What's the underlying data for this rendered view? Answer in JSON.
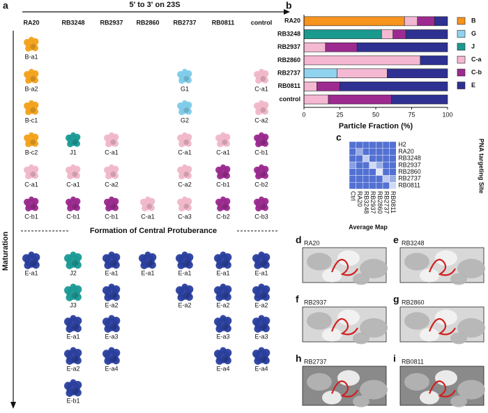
{
  "panel_a": {
    "letter": "a",
    "arrow_label": "5' to 3' on 23S",
    "columns": [
      "RA20",
      "RB3248",
      "RB2937",
      "RB2860",
      "RB2737",
      "RB0811",
      "control"
    ],
    "upper_rows": [
      [
        "B-a1",
        null,
        null,
        null,
        null,
        null,
        null
      ],
      [
        "B-a2",
        null,
        null,
        null,
        "G1",
        null,
        "C-a1"
      ],
      [
        "B-c1",
        null,
        null,
        null,
        "G2",
        null,
        "C-a2"
      ],
      [
        "B-c2",
        "J1",
        "C-a1",
        null,
        "C-a1",
        "C-a1",
        "C-b1"
      ],
      [
        "C-a1",
        "C-a1",
        "C-a2",
        null,
        "C-a2",
        "C-b1",
        "C-b2"
      ],
      [
        "C-b1",
        "C-b1",
        "C-b1",
        "C-a1",
        "C-a3",
        "C-b2",
        "C-b3"
      ]
    ],
    "divider": "Formation of Central Protuberance",
    "lower_rows": [
      [
        "E-a1",
        "J2",
        "E-a1",
        "E-a1",
        "E-a1",
        "E-a1",
        "E-a1"
      ],
      [
        null,
        "J3",
        "E-a2",
        null,
        "E-a2",
        "E-a2",
        "E-a2"
      ],
      [
        null,
        "E-a1",
        "E-a3",
        null,
        null,
        "E-a3",
        "E-a3"
      ],
      [
        null,
        "E-a2",
        "E-a4",
        null,
        null,
        "E-a4",
        "E-a4"
      ],
      [
        null,
        "E-b1",
        null,
        null,
        null,
        null,
        null
      ]
    ],
    "y_axis_label": "Maturation"
  },
  "chart_data": [
    {
      "type": "stacked-barh",
      "panel_label": "b",
      "categories": [
        "RA20",
        "RB3248",
        "RB2937",
        "RB2860",
        "RB2737",
        "RB0811",
        "control"
      ],
      "series": [
        {
          "name": "B",
          "color": "#f7941d",
          "values": [
            70,
            0,
            0,
            0,
            0,
            0,
            0
          ]
        },
        {
          "name": "G",
          "color": "#8fd3ee",
          "values": [
            0,
            0,
            0,
            0,
            23,
            0,
            0
          ]
        },
        {
          "name": "J",
          "color": "#1a9a8f",
          "values": [
            0,
            54,
            0,
            0,
            0,
            0,
            0
          ]
        },
        {
          "name": "C-a",
          "color": "#f4b8d2",
          "values": [
            9,
            8,
            15,
            81,
            35,
            9,
            17
          ]
        },
        {
          "name": "C-b",
          "color": "#9c2a90",
          "values": [
            12,
            9,
            22,
            0,
            0,
            16,
            44
          ]
        },
        {
          "name": "E",
          "color": "#2e3192",
          "values": [
            9,
            29,
            63,
            19,
            42,
            75,
            39
          ]
        }
      ],
      "xlim": [
        0,
        100
      ],
      "xticks": [
        0,
        25,
        50,
        75,
        100
      ],
      "x_label": "Particle Fraction (%)"
    },
    {
      "type": "heatmap",
      "panel_label": "c",
      "rows": [
        "H2",
        "RA20",
        "RB3248",
        "RB2937",
        "RB2860",
        "RB2737",
        "RB0811"
      ],
      "columns": [
        "Ctrl",
        "RA20",
        "RB3248",
        "RB2937",
        "RB2860",
        "RB2737",
        "RB0811"
      ],
      "values": [
        [
          0.9,
          0.9,
          0.9,
          0.9,
          0.9,
          0.9,
          0.9
        ],
        [
          0.9,
          0.5,
          0.9,
          0.9,
          0.9,
          0.9,
          0.9
        ],
        [
          0.9,
          0.9,
          0.3,
          0.9,
          0.9,
          0.9,
          0.9
        ],
        [
          0.6,
          0.9,
          0.9,
          0.2,
          0.5,
          0.9,
          0.9
        ],
        [
          0.9,
          0.9,
          0.9,
          0.9,
          0.1,
          0.9,
          0.9
        ],
        [
          0.9,
          0.9,
          0.9,
          0.9,
          0.9,
          0.3,
          0.5
        ],
        [
          0.9,
          0.9,
          0.9,
          0.9,
          0.9,
          0.9,
          0.2
        ]
      ],
      "x_label": "Average Map",
      "y_label": "PNA targeting Site"
    }
  ],
  "panels": [
    {
      "letter": "d",
      "label": "RA20"
    },
    {
      "letter": "e",
      "label": "RB3248"
    },
    {
      "letter": "f",
      "label": "RB2937"
    },
    {
      "letter": "g",
      "label": "RB2860"
    },
    {
      "letter": "h",
      "label": "RB2737"
    },
    {
      "letter": "i",
      "label": "RB0811"
    }
  ]
}
